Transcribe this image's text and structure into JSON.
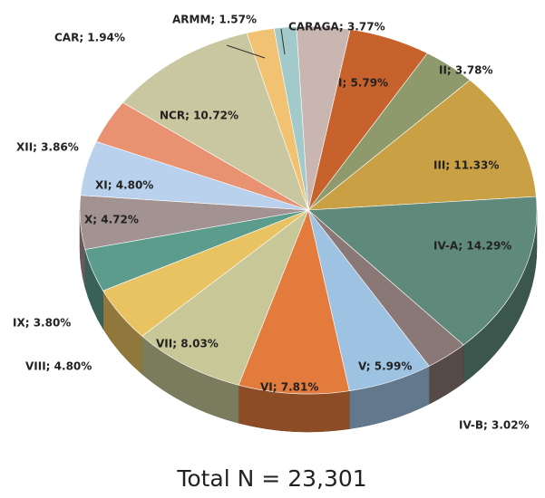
{
  "chart_data": {
    "type": "pie",
    "values": [
      3.77,
      5.79,
      3.78,
      11.33,
      14.29,
      3.02,
      5.99,
      7.81,
      8.03,
      4.8,
      3.8,
      4.72,
      4.8,
      3.86,
      10.72,
      1.94,
      1.57
    ],
    "value_labels": [
      "CARAGA; 3.77%",
      "I; 5.79%",
      "II; 3.78%",
      "III; 11.33%",
      "IV-A; 14.29%",
      "IV-B; 3.02%",
      "V; 5.99%",
      "VI; 7.81%",
      "VII; 8.03%",
      "VIII; 4.80%",
      "IX; 3.80%",
      "X; 4.72%",
      "XI; 4.80%",
      "XII; 3.86%",
      "NCR; 10.72%",
      "CAR; 1.94%",
      "ARMM; 1.57%"
    ],
    "colors": [
      "#c9b6b0",
      "#c8622c",
      "#8e9a6c",
      "#c9a043",
      "#5f8a7b",
      "#8a7876",
      "#9ec2e2",
      "#e27b3b",
      "#c7c797",
      "#e9c262",
      "#5c9c8c",
      "#a39292",
      "#b9d1ec",
      "#e99271",
      "#c9c7a0",
      "#f1c272",
      "#a2caca"
    ],
    "annotation": "Total N = 23,301"
  }
}
